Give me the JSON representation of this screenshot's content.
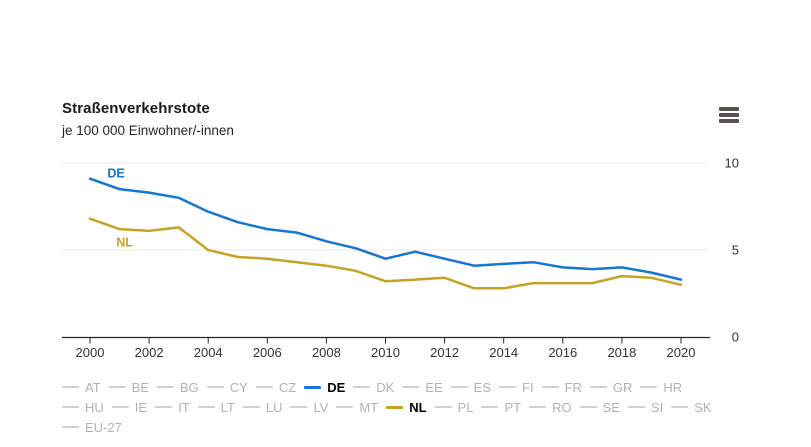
{
  "header": {
    "title": "Straßenverkehrstote",
    "subtitle": "je 100 000 Einwohner/-innen"
  },
  "toolbar": {
    "menu_icon": "hamburger-menu"
  },
  "colors": {
    "de_line": "#1577d1",
    "nl_line": "#c8a227",
    "inactive_legend_dash": "#d3cfc7",
    "inactive_legend_text": "#b6b2aa",
    "axis_line": "#262626",
    "gridline": "#ebebeb",
    "axis_text": "#333333"
  },
  "chart_data": {
    "type": "line",
    "title": "Straßenverkehrstote",
    "subtitle": "je 100 000 Einwohner/-innen",
    "x": [
      2000,
      2001,
      2002,
      2003,
      2004,
      2005,
      2006,
      2007,
      2008,
      2009,
      2010,
      2011,
      2012,
      2013,
      2014,
      2015,
      2016,
      2017,
      2018,
      2019,
      2020
    ],
    "x_tick_labels": [
      "2000",
      "2002",
      "2004",
      "2006",
      "2008",
      "2010",
      "2012",
      "2014",
      "2016",
      "2018",
      "2020"
    ],
    "x_tick_years": [
      2000,
      2002,
      2004,
      2006,
      2008,
      2010,
      2012,
      2014,
      2016,
      2018,
      2020
    ],
    "y_ticks": [
      0,
      5,
      10
    ],
    "y_tick_labels": [
      "0",
      "5",
      "10"
    ],
    "ylim": [
      0,
      10
    ],
    "xlim": [
      2000,
      2020
    ],
    "xlabel": "",
    "ylabel": "",
    "grid": "horizontal",
    "y_axis_side": "right",
    "legend_position": "bottom",
    "series": [
      {
        "name": "DE",
        "color": "#1577d1",
        "values": [
          9.1,
          8.5,
          8.3,
          8.0,
          7.2,
          6.6,
          6.2,
          6.0,
          5.5,
          5.1,
          4.5,
          4.9,
          4.5,
          4.1,
          4.2,
          4.3,
          4.0,
          3.9,
          4.0,
          3.7,
          3.3
        ],
        "label_pos": {
          "x": 2000.88,
          "y": 9.43
        }
      },
      {
        "name": "NL",
        "color": "#c8a227",
        "values": [
          6.8,
          6.2,
          6.1,
          6.3,
          5.0,
          4.6,
          4.5,
          4.3,
          4.1,
          3.8,
          3.2,
          3.3,
          3.4,
          2.8,
          2.8,
          3.1,
          3.1,
          3.1,
          3.5,
          3.4,
          3.0
        ],
        "label_pos": {
          "x": 2001.17,
          "y": 5.46
        }
      }
    ]
  },
  "legend": {
    "rows": [
      [
        {
          "code": "AT",
          "active": false
        },
        {
          "code": "BE",
          "active": false
        },
        {
          "code": "BG",
          "active": false
        },
        {
          "code": "CY",
          "active": false
        },
        {
          "code": "CZ",
          "active": false
        },
        {
          "code": "DE",
          "active": true,
          "color": "#1577d1"
        },
        {
          "code": "DK",
          "active": false
        },
        {
          "code": "EE",
          "active": false
        },
        {
          "code": "ES",
          "active": false
        },
        {
          "code": "FI",
          "active": false
        },
        {
          "code": "FR",
          "active": false
        },
        {
          "code": "GR",
          "active": false
        },
        {
          "code": "HR",
          "active": false
        }
      ],
      [
        {
          "code": "HU",
          "active": false
        },
        {
          "code": "IE",
          "active": false
        },
        {
          "code": "IT",
          "active": false
        },
        {
          "code": "LT",
          "active": false
        },
        {
          "code": "LU",
          "active": false
        },
        {
          "code": "LV",
          "active": false
        },
        {
          "code": "MT",
          "active": false
        },
        {
          "code": "NL",
          "active": true,
          "color": "#c8a227"
        },
        {
          "code": "PL",
          "active": false
        },
        {
          "code": "PT",
          "active": false
        },
        {
          "code": "RO",
          "active": false
        },
        {
          "code": "SE",
          "active": false
        },
        {
          "code": "SI",
          "active": false
        },
        {
          "code": "SK",
          "active": false
        }
      ],
      [
        {
          "code": "EU-27",
          "active": false
        }
      ]
    ]
  }
}
